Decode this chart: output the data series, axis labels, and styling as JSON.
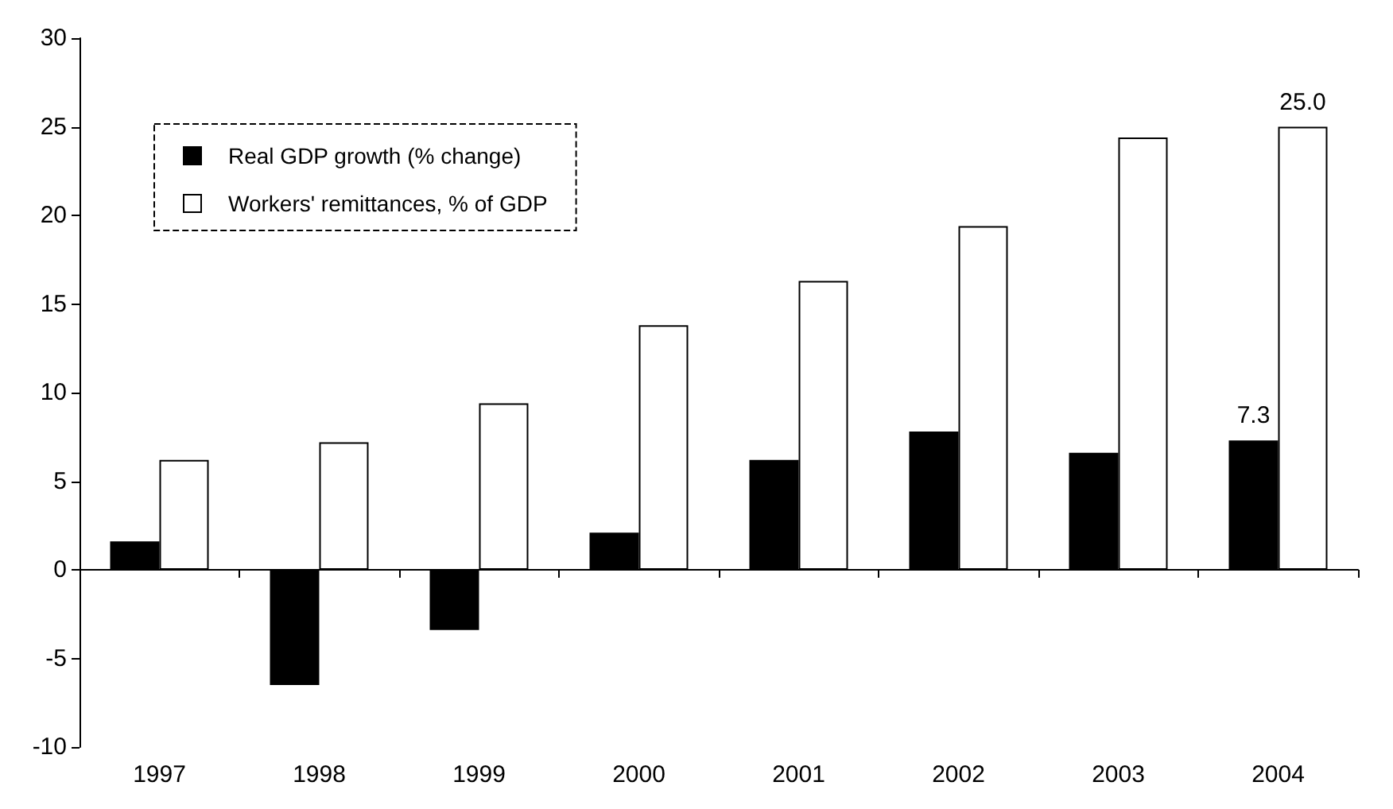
{
  "chart_data": {
    "type": "bar",
    "categories": [
      "1997",
      "1998",
      "1999",
      "2000",
      "2001",
      "2002",
      "2003",
      "2004"
    ],
    "series": [
      {
        "name": "Real GDP growth (% change)",
        "color": "#000000",
        "values": [
          1.6,
          -6.5,
          -3.4,
          2.1,
          6.2,
          7.8,
          6.6,
          7.3
        ],
        "value_labels": [
          null,
          null,
          null,
          null,
          null,
          null,
          null,
          "7.3"
        ]
      },
      {
        "name": "Workers' remittances, % of GDP",
        "color": "#ffffff",
        "values": [
          6.2,
          7.2,
          9.4,
          13.8,
          16.3,
          19.4,
          24.4,
          25.0
        ],
        "value_labels": [
          null,
          null,
          null,
          null,
          null,
          null,
          null,
          "25.0"
        ]
      }
    ],
    "ylim": [
      -10,
      30
    ],
    "yticks": [
      -10,
      -5,
      0,
      5,
      10,
      15,
      20,
      25,
      30
    ],
    "legend": "top left"
  }
}
